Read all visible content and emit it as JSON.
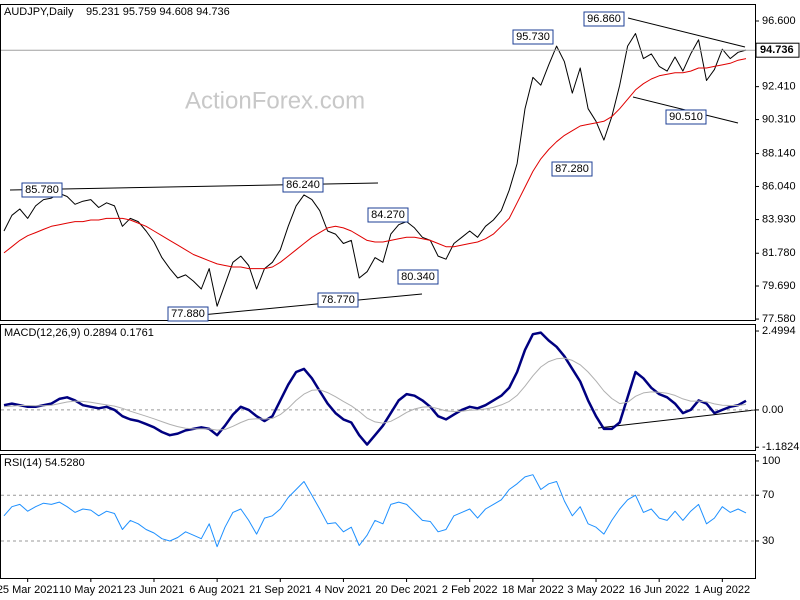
{
  "chart_data": [
    {
      "type": "line",
      "title": "AUDJPY,Daily",
      "quote": "95.231 95.759 94.608 94.736",
      "watermark": "ActionForex.com",
      "ylim": [
        77.52,
        97.62
      ],
      "yticks": [
        {
          "value": 96.6,
          "label": "96.600"
        },
        {
          "value": 92.41,
          "label": "92.410"
        },
        {
          "value": 90.31,
          "label": "90.310"
        },
        {
          "value": 88.14,
          "label": "88.140"
        },
        {
          "value": 86.04,
          "label": "86.040"
        },
        {
          "value": 83.93,
          "label": "83.930"
        },
        {
          "value": 81.78,
          "label": "81.780"
        },
        {
          "value": 79.69,
          "label": "79.690"
        },
        {
          "value": 77.58,
          "label": "77.580"
        }
      ],
      "last_price": {
        "value": 94.736,
        "label": "94.736"
      },
      "annotations": [
        "85.780",
        "86.240",
        "84.270",
        "80.340",
        "78.770",
        "77.880",
        "95.730",
        "96.860",
        "87.280",
        "90.510"
      ],
      "series": [
        {
          "name": "AUDJPY",
          "color": "#000000",
          "values": [
            83.2,
            84.2,
            84.6,
            84.0,
            84.8,
            85.2,
            85.3,
            85.6,
            85.4,
            84.9,
            85.1,
            85.2,
            84.7,
            85.0,
            84.8,
            83.5,
            84.0,
            83.8,
            83.2,
            82.5,
            81.5,
            80.8,
            80.2,
            80.4,
            80.0,
            79.5,
            80.8,
            78.4,
            79.8,
            81.2,
            81.6,
            81.0,
            79.5,
            80.8,
            81.2,
            82.0,
            83.5,
            84.8,
            85.5,
            85.2,
            84.5,
            83.2,
            83.0,
            82.4,
            82.6,
            80.2,
            80.6,
            81.5,
            81.2,
            83.0,
            83.6,
            83.8,
            83.4,
            82.8,
            82.6,
            81.6,
            81.4,
            82.4,
            82.8,
            83.2,
            82.8,
            83.5,
            83.9,
            84.5,
            85.8,
            87.5,
            91.0,
            93.0,
            92.5,
            93.8,
            95.0,
            94.0,
            92.0,
            93.6,
            91.0,
            90.2,
            89.0,
            90.5,
            92.5,
            95.0,
            95.8,
            94.2,
            94.5,
            93.7,
            93.4,
            94.3,
            93.4,
            94.5,
            95.4,
            92.8,
            93.5,
            94.8,
            94.2,
            94.6,
            94.74
          ]
        },
        {
          "name": "MA",
          "color": "#e00000",
          "values": [
            81.8,
            82.2,
            82.6,
            82.9,
            83.1,
            83.3,
            83.5,
            83.6,
            83.7,
            83.8,
            83.8,
            83.9,
            83.9,
            84.0,
            84.0,
            84.0,
            83.9,
            83.7,
            83.5,
            83.2,
            82.9,
            82.6,
            82.3,
            82.0,
            81.7,
            81.5,
            81.3,
            81.1,
            81.0,
            80.9,
            80.9,
            80.8,
            80.8,
            80.8,
            80.9,
            81.2,
            81.6,
            82.0,
            82.4,
            82.8,
            83.1,
            83.4,
            83.5,
            83.4,
            83.2,
            82.9,
            82.6,
            82.5,
            82.5,
            82.6,
            82.7,
            82.8,
            82.8,
            82.7,
            82.6,
            82.4,
            82.2,
            82.2,
            82.3,
            82.4,
            82.5,
            82.7,
            83.0,
            83.5,
            84.0,
            85.0,
            86.0,
            87.0,
            87.8,
            88.4,
            88.9,
            89.3,
            89.6,
            89.9,
            90.0,
            90.1,
            90.2,
            90.5,
            91.0,
            91.6,
            92.2,
            92.6,
            92.9,
            93.1,
            93.2,
            93.3,
            93.3,
            93.4,
            93.6,
            93.6,
            93.7,
            93.8,
            93.9,
            94.1,
            94.2
          ]
        }
      ]
    },
    {
      "type": "line",
      "title": "MACD(12,26,9) 0.2894 0.1761",
      "ylim": [
        -1.27,
        2.69
      ],
      "yticks": [
        2.4994,
        {
          "value": 0,
          "label": "0.00"
        },
        -1.1824
      ],
      "levels": [
        0
      ],
      "series": [
        {
          "name": "MACD",
          "color": "#000080",
          "width": 2.5,
          "values": [
            0.15,
            0.2,
            0.15,
            0.1,
            0.1,
            0.15,
            0.2,
            0.35,
            0.4,
            0.3,
            0.15,
            0.1,
            0.05,
            0.1,
            0.0,
            -0.2,
            -0.3,
            -0.35,
            -0.45,
            -0.55,
            -0.7,
            -0.8,
            -0.75,
            -0.65,
            -0.6,
            -0.55,
            -0.6,
            -0.8,
            -0.5,
            -0.15,
            0.1,
            0.0,
            -0.2,
            -0.35,
            -0.2,
            0.3,
            0.8,
            1.2,
            1.3,
            1.0,
            0.6,
            0.2,
            -0.1,
            -0.3,
            -0.4,
            -0.8,
            -1.1,
            -0.8,
            -0.5,
            -0.1,
            0.3,
            0.5,
            0.45,
            0.3,
            0.1,
            -0.2,
            -0.3,
            -0.15,
            0.0,
            0.1,
            0.05,
            0.15,
            0.3,
            0.45,
            0.7,
            1.2,
            1.9,
            2.4,
            2.45,
            2.2,
            2.0,
            1.7,
            1.3,
            0.9,
            0.3,
            -0.2,
            -0.6,
            -0.6,
            -0.4,
            0.4,
            1.2,
            1.0,
            0.7,
            0.5,
            0.4,
            0.2,
            -0.1,
            0.0,
            0.3,
            0.2,
            -0.1,
            0.0,
            0.1,
            0.15,
            0.2894
          ]
        },
        {
          "name": "Signal",
          "color": "#b0b0b0",
          "width": 1,
          "values": [
            0.1,
            0.12,
            0.14,
            0.14,
            0.13,
            0.13,
            0.15,
            0.2,
            0.25,
            0.28,
            0.27,
            0.24,
            0.2,
            0.16,
            0.12,
            0.05,
            -0.04,
            -0.12,
            -0.2,
            -0.28,
            -0.37,
            -0.46,
            -0.53,
            -0.58,
            -0.6,
            -0.6,
            -0.6,
            -0.64,
            -0.62,
            -0.52,
            -0.4,
            -0.3,
            -0.28,
            -0.29,
            -0.27,
            -0.15,
            0.05,
            0.3,
            0.5,
            0.62,
            0.64,
            0.55,
            0.42,
            0.27,
            0.13,
            -0.05,
            -0.26,
            -0.38,
            -0.42,
            -0.36,
            -0.23,
            -0.08,
            0.03,
            0.09,
            0.1,
            0.04,
            -0.03,
            -0.05,
            -0.04,
            -0.01,
            0.0,
            0.03,
            0.08,
            0.16,
            0.27,
            0.46,
            0.75,
            1.08,
            1.36,
            1.53,
            1.62,
            1.64,
            1.57,
            1.43,
            1.2,
            0.92,
            0.6,
            0.36,
            0.2,
            0.24,
            0.43,
            0.54,
            0.57,
            0.56,
            0.53,
            0.46,
            0.35,
            0.28,
            0.28,
            0.26,
            0.19,
            0.15,
            0.14,
            0.14,
            0.1761
          ]
        }
      ]
    },
    {
      "type": "line",
      "title": "RSI(14) 54.5280",
      "ylim": [
        -2.4,
        105.2
      ],
      "yticks": [
        100,
        70,
        30
      ],
      "levels": [
        70,
        30
      ],
      "categories": [
        null,
        null,
        null,
        "25 Mar 2021",
        null,
        null,
        null,
        null,
        null,
        null,
        null,
        "10 May 2021",
        null,
        null,
        null,
        null,
        null,
        null,
        null,
        "23 Jun 2021",
        null,
        null,
        null,
        null,
        null,
        null,
        null,
        "6 Aug 2021",
        null,
        null,
        null,
        null,
        null,
        null,
        null,
        "21 Sep 2021",
        null,
        null,
        null,
        null,
        null,
        null,
        null,
        "4 Nov 2021",
        null,
        null,
        null,
        null,
        null,
        null,
        null,
        "20 Dec 2021",
        null,
        null,
        null,
        null,
        null,
        null,
        null,
        "2 Feb 2022",
        null,
        null,
        null,
        null,
        null,
        null,
        null,
        "18 Mar 2022",
        null,
        null,
        null,
        null,
        null,
        null,
        null,
        "3 May 2022",
        null,
        null,
        null,
        null,
        null,
        null,
        null,
        "16 Jun 2022",
        null,
        null,
        null,
        null,
        null,
        null,
        null,
        "1 Aug 2022",
        null,
        null,
        null
      ],
      "series": [
        {
          "name": "RSI",
          "color": "#1e90ff",
          "width": 1,
          "values": [
            52,
            60,
            62,
            56,
            60,
            63,
            62,
            64,
            60,
            55,
            58,
            57,
            52,
            56,
            54,
            40,
            48,
            45,
            40,
            37,
            32,
            30,
            33,
            38,
            35,
            32,
            45,
            25,
            42,
            55,
            58,
            48,
            36,
            50,
            52,
            58,
            68,
            75,
            82,
            70,
            58,
            45,
            46,
            38,
            42,
            26,
            35,
            48,
            45,
            62,
            64,
            62,
            55,
            48,
            47,
            38,
            40,
            52,
            55,
            58,
            50,
            58,
            62,
            66,
            75,
            80,
            86,
            88,
            75,
            80,
            82,
            65,
            52,
            60,
            45,
            42,
            36,
            48,
            58,
            66,
            70,
            55,
            58,
            50,
            48,
            56,
            48,
            56,
            62,
            45,
            50,
            60,
            55,
            58,
            54.528
          ]
        }
      ]
    }
  ]
}
